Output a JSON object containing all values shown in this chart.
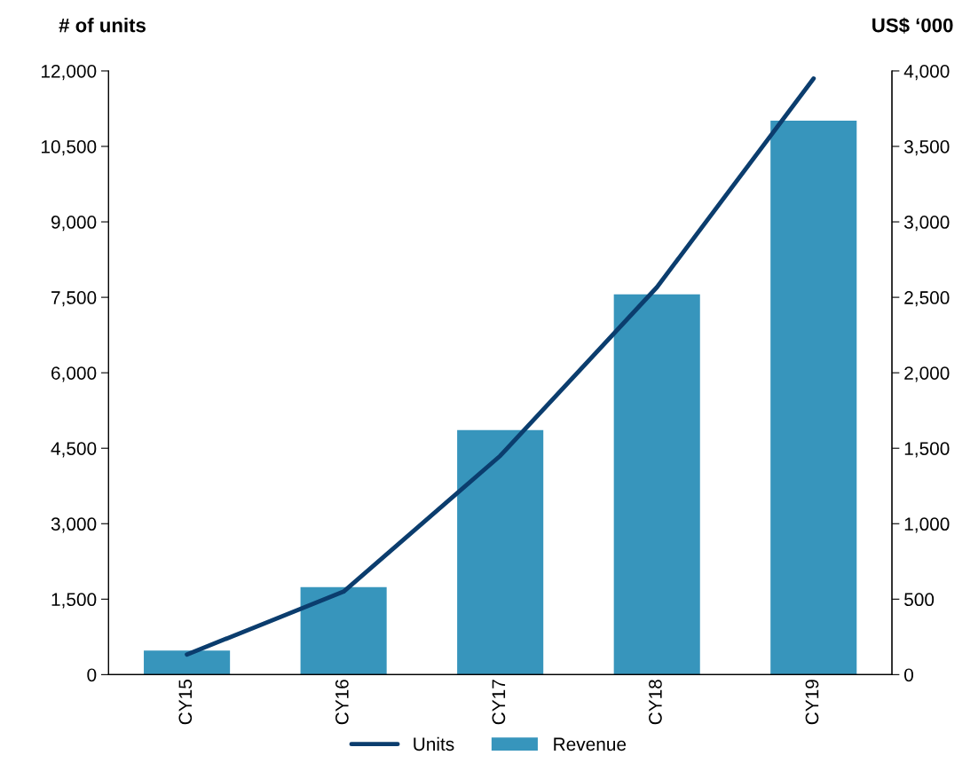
{
  "chart_data": {
    "type": "bar",
    "ylabel": "# of units",
    "y2label": "US$ ‘000",
    "categories": [
      "CY15",
      "CY16",
      "CY17",
      "CY18",
      "CY19"
    ],
    "series": [
      {
        "name": "Units",
        "type": "line",
        "color": "#0b3d6e",
        "values": [
          400,
          1650,
          4350,
          7700,
          11850
        ],
        "axis": "y"
      },
      {
        "name": "Revenue",
        "color": "#3795bc",
        "values": [
          160,
          580,
          1620,
          2520,
          3670
        ],
        "axis": "y2"
      }
    ],
    "ylim": [
      0,
      12000
    ],
    "yticks": [
      0,
      {
        "value": 1500,
        "label": "1,500"
      },
      {
        "value": 3000,
        "label": "3,000"
      },
      {
        "value": 4500,
        "label": "4,500"
      },
      {
        "value": 6000,
        "label": "6,000"
      },
      {
        "value": 7500,
        "label": "7,500"
      },
      {
        "value": 9000,
        "label": "9,000"
      },
      {
        "value": 10500,
        "label": "10,500"
      },
      {
        "value": 12000,
        "label": "12,000"
      }
    ],
    "y2lim": [
      0,
      4000
    ],
    "y2ticks": [
      0,
      500,
      {
        "value": 1000,
        "label": "1,000"
      },
      {
        "value": 1500,
        "label": "1,500"
      },
      {
        "value": 2000,
        "label": "2,000"
      },
      {
        "value": 2500,
        "label": "2,500"
      },
      {
        "value": 3000,
        "label": "3,000"
      },
      {
        "value": 3500,
        "label": "3,500"
      },
      {
        "value": 4000,
        "label": "4,000"
      }
    ],
    "grid": false,
    "legend": "bottom",
    "marker": "none",
    "line_style": "solid"
  }
}
